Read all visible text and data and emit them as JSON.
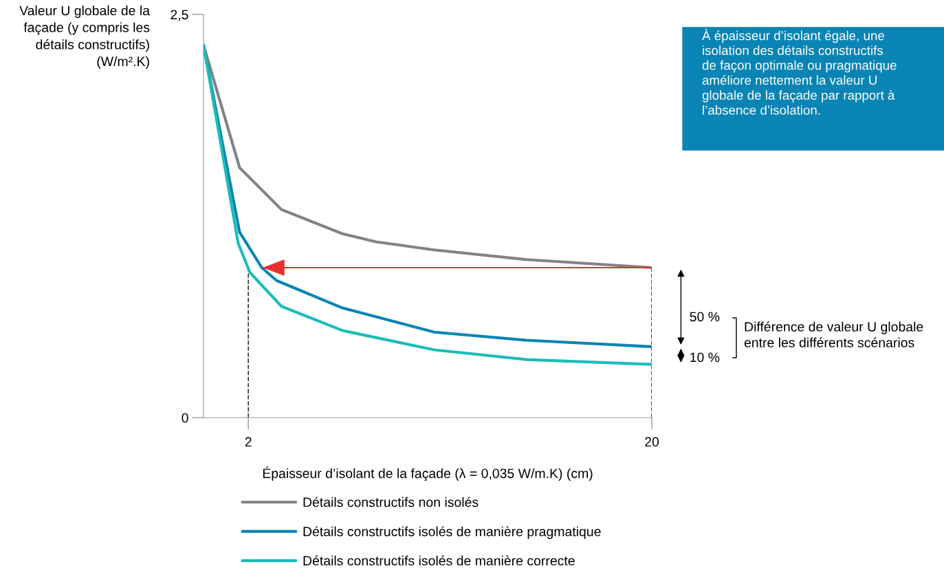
{
  "chart_data": {
    "type": "line",
    "xlabel": "Épaisseur d’isolant de la façade (λ = 0,035 W/m.K) (cm)",
    "ylabel": "Valeur U globale de la\nfaçade (y compris les\ndétails constructifs)\n(W/m².K)",
    "xlim": [
      0,
      20
    ],
    "ylim": [
      0,
      2.5
    ],
    "xticks": [
      2,
      20
    ],
    "yticks": [
      0,
      {
        "value": 2.5,
        "label": "2,5"
      }
    ],
    "grid": false,
    "legend": "bottom",
    "line_style": "solid",
    "marker": "none",
    "series": [
      {
        "name": "Détails constructifs non isolés",
        "color": "#7f8486",
        "x": [
          0,
          1.61,
          3.48,
          6.2,
          7.7,
          10.3,
          14.4,
          20
        ],
        "values": [
          2.31,
          1.55,
          1.29,
          1.14,
          1.09,
          1.04,
          0.98,
          0.93
        ]
      },
      {
        "name": "Détails constructifs isolés de manière pragmatique",
        "color": "#0a84b4",
        "x": [
          0,
          1.61,
          2.6,
          3.26,
          6.2,
          10.3,
          14.4,
          20
        ],
        "values": [
          2.31,
          1.15,
          0.93,
          0.85,
          0.68,
          0.53,
          0.48,
          0.44
        ]
      },
      {
        "name": "Détails constructifs isolés de manière correcte",
        "color": "#1cbcb8",
        "x": [
          0,
          1.55,
          2.07,
          3.48,
          6.2,
          10.3,
          14.4,
          20
        ],
        "values": [
          2.31,
          1.08,
          0.9,
          0.69,
          0.54,
          0.42,
          0.36,
          0.33
        ]
      },
      {
        "color": "#e8312f",
        "x": [
          2.64,
          20
        ],
        "values": [
          0.93,
          0.93
        ]
      }
    ],
    "ref_lines": [
      {
        "axis": "x",
        "value": 2,
        "color": "#333333",
        "line_style": "dashed"
      },
      {
        "axis": "x",
        "value": 20,
        "color": "#333333",
        "line_style": "dashed"
      }
    ],
    "annotations": [
      "À épaisseur d’isolant égale, une\nisolation des détails constructifs\nde façon optimale ou pragmatique\naméliore nettement la valeur U\nglobale de la façade par rapport à\nl’absence d’isolation.",
      "50 %",
      "10 %",
      "Différence de valeur U globale\nentre les différents scénarios"
    ]
  }
}
